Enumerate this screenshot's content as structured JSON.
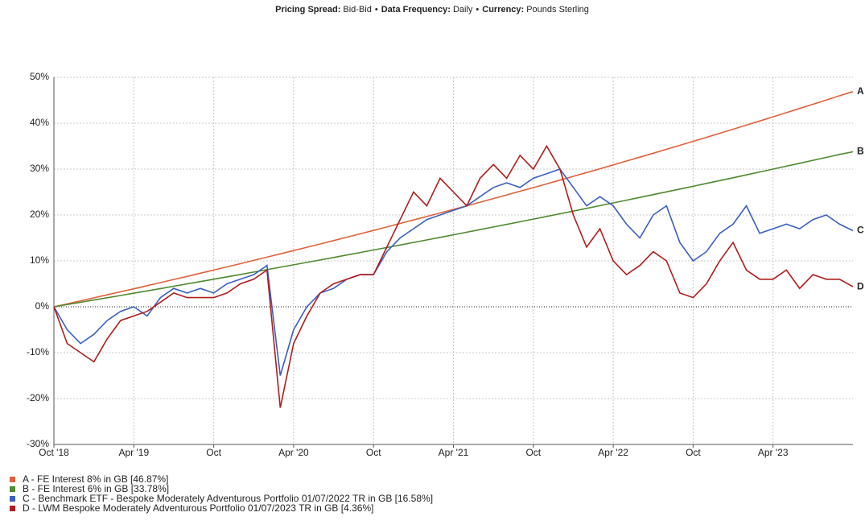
{
  "chart_data": {
    "type": "line",
    "subtitle": [
      {
        "label": "Pricing Spread:",
        "value": "Bid-Bid"
      },
      {
        "label": "Data Frequency:",
        "value": "Daily"
      },
      {
        "label": "Currency:",
        "value": "Pounds Sterling"
      }
    ],
    "separator": "•",
    "x": [
      "2018-10",
      "2018-11",
      "2018-12",
      "2019-01",
      "2019-02",
      "2019-03",
      "2019-04",
      "2019-05",
      "2019-06",
      "2019-07",
      "2019-08",
      "2019-09",
      "2019-10",
      "2019-11",
      "2019-12",
      "2020-01",
      "2020-02",
      "2020-03",
      "2020-04",
      "2020-05",
      "2020-06",
      "2020-07",
      "2020-08",
      "2020-09",
      "2020-10",
      "2020-11",
      "2020-12",
      "2021-01",
      "2021-02",
      "2021-03",
      "2021-04",
      "2021-05",
      "2021-06",
      "2021-07",
      "2021-08",
      "2021-09",
      "2021-10",
      "2021-11",
      "2021-12",
      "2022-01",
      "2022-02",
      "2022-03",
      "2022-04",
      "2022-05",
      "2022-06",
      "2022-07",
      "2022-08",
      "2022-09",
      "2022-10",
      "2022-11",
      "2022-12",
      "2023-01",
      "2023-02",
      "2023-03",
      "2023-04",
      "2023-05",
      "2023-06",
      "2023-07",
      "2023-08",
      "2023-09",
      "2023-10"
    ],
    "xlim": [
      "2018-10",
      "2023-10"
    ],
    "xticks": [
      {
        "value": "2018-10",
        "label": "Oct '18"
      },
      {
        "value": "2019-04",
        "label": "Apr '19"
      },
      {
        "value": "2019-10",
        "label": "Oct"
      },
      {
        "value": "2020-04",
        "label": "Apr '20"
      },
      {
        "value": "2020-10",
        "label": "Oct"
      },
      {
        "value": "2021-04",
        "label": "Apr '21"
      },
      {
        "value": "2021-10",
        "label": "Oct"
      },
      {
        "value": "2022-04",
        "label": "Apr '22"
      },
      {
        "value": "2022-10",
        "label": "Oct"
      },
      {
        "value": "2023-04",
        "label": "Apr '23"
      }
    ],
    "ylim": [
      -30,
      50
    ],
    "yticks": [
      {
        "value": -30,
        "label": "-30%"
      },
      {
        "value": -20,
        "label": "-20%"
      },
      {
        "value": -10,
        "label": "-10%"
      },
      {
        "value": 0,
        "label": "0%"
      },
      {
        "value": 10,
        "label": "10%"
      },
      {
        "value": 20,
        "label": "20%"
      },
      {
        "value": 30,
        "label": "30%"
      },
      {
        "value": 40,
        "label": "40%"
      },
      {
        "value": 50,
        "label": "50%"
      }
    ],
    "grid": true,
    "legend": "bottom-left",
    "series": [
      {
        "name": "A - FE Interest 8% in GB [46.87%]",
        "tag": "A",
        "color": "#e0603a",
        "values": [
          0,
          0.64,
          1.29,
          1.94,
          2.6,
          3.26,
          3.92,
          4.59,
          5.26,
          5.94,
          6.62,
          7.31,
          8,
          8.69,
          9.39,
          10.1,
          10.81,
          11.52,
          12.24,
          12.96,
          13.69,
          14.42,
          15.16,
          15.9,
          16.64,
          17.39,
          18.15,
          18.91,
          19.67,
          20.44,
          21.22,
          22,
          22.79,
          23.58,
          24.37,
          25.17,
          25.97,
          26.78,
          27.6,
          28.42,
          29.24,
          30.07,
          30.91,
          31.75,
          32.6,
          33.45,
          34.31,
          35.18,
          36.05,
          36.92,
          37.8,
          38.69,
          39.58,
          40.48,
          41.38,
          42.29,
          43.21,
          44.13,
          45.05,
          45.99,
          46.87
        ]
      },
      {
        "name": "B - FE Interest 6% in GB [33.78%]",
        "tag": "B",
        "color": "#4e8a2e",
        "values": [
          0,
          0.49,
          0.98,
          1.47,
          1.96,
          2.46,
          2.96,
          3.46,
          3.96,
          4.47,
          4.98,
          5.49,
          6,
          6.52,
          7.04,
          7.56,
          8.08,
          8.61,
          9.14,
          9.67,
          10.2,
          10.74,
          11.28,
          11.82,
          12.36,
          12.91,
          13.46,
          14.01,
          14.57,
          15.12,
          15.68,
          16.25,
          16.81,
          17.38,
          17.95,
          18.53,
          19.1,
          19.68,
          20.27,
          20.85,
          21.44,
          22.04,
          22.63,
          23.23,
          23.83,
          24.43,
          25.04,
          25.65,
          26.25,
          26.87,
          27.49,
          28.11,
          28.74,
          29.37,
          30,
          30.63,
          31.27,
          31.91,
          32.55,
          33.2,
          33.78
        ]
      },
      {
        "name": "C - Benchmark ETF -  Bespoke Moderately Adventurous Portfolio 01/07/2022 TR in GB [16.58%]",
        "tag": "C",
        "color": "#3a5fc0",
        "values": [
          0,
          -5,
          -8,
          -6,
          -3,
          -1,
          0,
          -2,
          2,
          4,
          3,
          4,
          3,
          5,
          6,
          7,
          9,
          -15,
          -5,
          0,
          3,
          4,
          6,
          7,
          7,
          12,
          15,
          17,
          19,
          20,
          21,
          22,
          24,
          26,
          27,
          26,
          28,
          29,
          30,
          26,
          22,
          24,
          22,
          18,
          15,
          20,
          22,
          14,
          10,
          12,
          16,
          18,
          22,
          16,
          17,
          18,
          17,
          19,
          20,
          18,
          16.58
        ]
      },
      {
        "name": "D - LWM Bespoke Moderately Adventurous Portfolio 01/07/2023 TR in GB [4.36%]",
        "tag": "D",
        "color": "#b01c1c",
        "values": [
          0,
          -8,
          -10,
          -12,
          -7,
          -3,
          -2,
          -1,
          1,
          3,
          2,
          2,
          2,
          3,
          5,
          6,
          8,
          -22,
          -8,
          -2,
          3,
          5,
          6,
          7,
          7,
          13,
          19,
          25,
          22,
          28,
          25,
          22,
          28,
          31,
          28,
          33,
          30,
          35,
          30,
          20,
          13,
          17,
          10,
          7,
          9,
          12,
          10,
          3,
          2,
          5,
          10,
          14,
          8,
          6,
          6,
          8,
          4,
          7,
          6,
          6,
          4.36
        ]
      }
    ]
  }
}
